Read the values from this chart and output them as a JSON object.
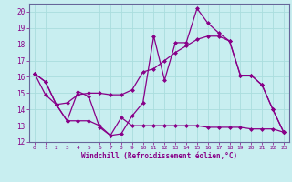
{
  "bg_color": "#c8eef0",
  "grid_color": "#aadddd",
  "line_color": "#880088",
  "marker": "D",
  "marker_size": 2.0,
  "line_width": 0.9,
  "xlabel": "Windchill (Refroidissement éolien,°C)",
  "xlabel_color": "#880088",
  "tick_color": "#880088",
  "xlim": [
    -0.5,
    23.5
  ],
  "ylim": [
    12,
    20.5
  ],
  "yticks": [
    12,
    13,
    14,
    15,
    16,
    17,
    18,
    19,
    20
  ],
  "xticks": [
    0,
    1,
    2,
    3,
    4,
    5,
    6,
    7,
    8,
    9,
    10,
    11,
    12,
    13,
    14,
    15,
    16,
    17,
    18,
    19,
    20,
    21,
    22,
    23
  ],
  "series": [
    [
      16.2,
      15.7,
      14.3,
      13.3,
      15.1,
      14.8,
      12.9,
      12.4,
      12.5,
      13.6,
      14.4,
      18.5,
      15.8,
      18.1,
      18.1,
      20.2,
      19.3,
      18.7,
      18.2,
      16.1,
      16.1,
      15.5,
      14.0,
      12.6
    ],
    [
      16.2,
      15.7,
      14.3,
      13.3,
      13.3,
      13.3,
      13.0,
      12.4,
      13.5,
      13.0,
      13.0,
      13.0,
      13.0,
      13.0,
      13.0,
      13.0,
      12.9,
      12.9,
      12.9,
      12.9,
      12.8,
      12.8,
      12.8,
      12.6
    ],
    [
      16.2,
      14.9,
      14.3,
      14.4,
      14.9,
      15.0,
      15.0,
      14.9,
      14.9,
      15.2,
      16.3,
      16.5,
      17.0,
      17.5,
      17.9,
      18.3,
      18.5,
      18.5,
      18.2,
      16.1,
      16.1,
      15.5,
      14.0,
      12.6
    ]
  ]
}
